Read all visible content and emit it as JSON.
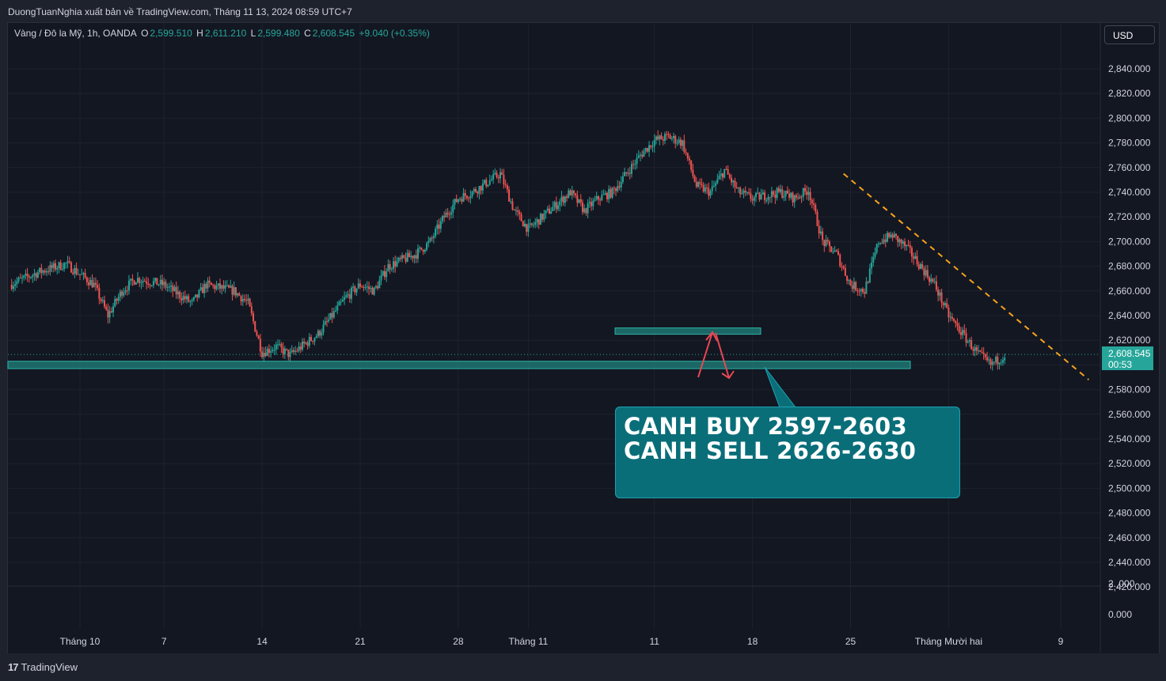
{
  "header": {
    "credit": "DuongTuanNghia xuất bản về TradingView.com, Tháng 11 13, 2024 08:59 UTC+7"
  },
  "symbol": {
    "name": "Vàng / Đô la Mỹ, 1h, OANDA",
    "o_label": "O",
    "o_value": "2,599.510",
    "h_label": "H",
    "h_value": "2,611.210",
    "l_label": "L",
    "l_value": "2,599.480",
    "c_label": "C",
    "c_value": "2,608.545",
    "change": "+9.040 (+0.35%)"
  },
  "currency_button": "USD",
  "price_tag": {
    "price": "2,608.545",
    "countdown": "00:53"
  },
  "callout": {
    "line1": "CANH BUY 2597-2603",
    "line2": "CANH SELL 2626-2630"
  },
  "footer": {
    "brand": "TradingView",
    "logo_glyph": "17"
  },
  "colors": {
    "up": "#26a69a",
    "down": "#ef5350",
    "zone": "#1f7a78",
    "callout": "#0a6e79",
    "trend": "#f7a21b",
    "arrow": "#e84855"
  },
  "chart_data": {
    "type": "candlestick",
    "title": "Vàng / Đô la Mỹ, 1h, OANDA",
    "ylim": [
      2400,
      2860
    ],
    "y_ticks": [
      "2,840.000",
      "2,820.000",
      "2,800.000",
      "2,780.000",
      "2,760.000",
      "2,740.000",
      "2,720.000",
      "2,700.000",
      "2,680.000",
      "2,660.000",
      "2,640.000",
      "2,620.000",
      "2,600.000",
      "2,580.000",
      "2,560.000",
      "2,540.000",
      "2,520.000",
      "2,500.000",
      "2,480.000",
      "2,460.000",
      "2,440.000",
      "2,420.000"
    ],
    "lower_pane_ticks": [
      "2.,000",
      "0.000"
    ],
    "x_ticks": [
      "Tháng 10",
      "7",
      "14",
      "21",
      "28",
      "Tháng 11",
      "11",
      "18",
      "25",
      "Tháng Mười hai",
      "9"
    ],
    "x_tick_days": [
      0,
      6,
      13,
      20,
      27,
      32,
      41,
      48,
      55,
      62,
      70
    ],
    "last_price": 2608.545,
    "price_path": [
      [
        -5,
        2665
      ],
      [
        -3,
        2675
      ],
      [
        -1,
        2682
      ],
      [
        1,
        2665
      ],
      [
        2,
        2640
      ],
      [
        3,
        2660
      ],
      [
        4,
        2670
      ],
      [
        6,
        2665
      ],
      [
        8,
        2650
      ],
      [
        9,
        2665
      ],
      [
        11,
        2660
      ],
      [
        12,
        2650
      ],
      [
        13,
        2610
      ],
      [
        14,
        2615
      ],
      [
        15,
        2608
      ],
      [
        17,
        2625
      ],
      [
        18,
        2640
      ],
      [
        19,
        2655
      ],
      [
        20,
        2665
      ],
      [
        21,
        2660
      ],
      [
        22,
        2680
      ],
      [
        24,
        2690
      ],
      [
        25,
        2700
      ],
      [
        26,
        2720
      ],
      [
        27,
        2735
      ],
      [
        28,
        2740
      ],
      [
        30,
        2755
      ],
      [
        31,
        2725
      ],
      [
        32,
        2710
      ],
      [
        34,
        2730
      ],
      [
        35,
        2740
      ],
      [
        36,
        2725
      ],
      [
        37,
        2735
      ],
      [
        38,
        2740
      ],
      [
        39,
        2755
      ],
      [
        40,
        2770
      ],
      [
        41,
        2782
      ],
      [
        42,
        2785
      ],
      [
        43,
        2780
      ],
      [
        44,
        2745
      ],
      [
        45,
        2740
      ],
      [
        46,
        2758
      ],
      [
        47,
        2740
      ],
      [
        48,
        2735
      ],
      [
        50,
        2740
      ],
      [
        51,
        2735
      ],
      [
        52,
        2742
      ],
      [
        53,
        2700
      ],
      [
        54,
        2690
      ],
      [
        55,
        2665
      ],
      [
        56,
        2660
      ],
      [
        57,
        2700
      ],
      [
        58,
        2705
      ],
      [
        59,
        2695
      ],
      [
        60,
        2680
      ],
      [
        61,
        2665
      ],
      [
        62,
        2640
      ],
      [
        63,
        2625
      ],
      [
        64,
        2610
      ],
      [
        65,
        2600
      ],
      [
        66,
        2608
      ]
    ],
    "zones": [
      {
        "label": "buy-zone",
        "from": 2597,
        "to": 2603
      },
      {
        "label": "sell-zone",
        "from": 2626,
        "to": 2630
      }
    ],
    "trendline": {
      "from": [
        54.5,
        2755
      ],
      "to": [
        72,
        2588
      ]
    },
    "grid": true
  }
}
